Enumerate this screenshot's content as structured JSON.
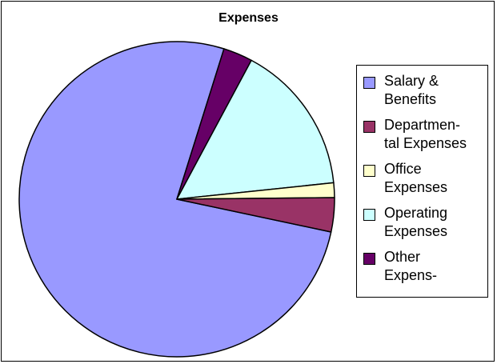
{
  "chart_data": {
    "type": "pie",
    "title": "Expenses",
    "categories": [
      "Salary &\nBenefits",
      "Departmen-\ntal Expenses",
      "Office\nExpenses",
      "Operating\nExpenses",
      "Other\nExpens-"
    ],
    "values": [
      76.5,
      3.5,
      1.5,
      15.5,
      3.0
    ],
    "colors": [
      "#9999ff",
      "#993366",
      "#ffffcc",
      "#ccffff",
      "#660066"
    ],
    "start_angle_deg": 0,
    "direction": "counterclockwise",
    "legend_position": "right"
  }
}
